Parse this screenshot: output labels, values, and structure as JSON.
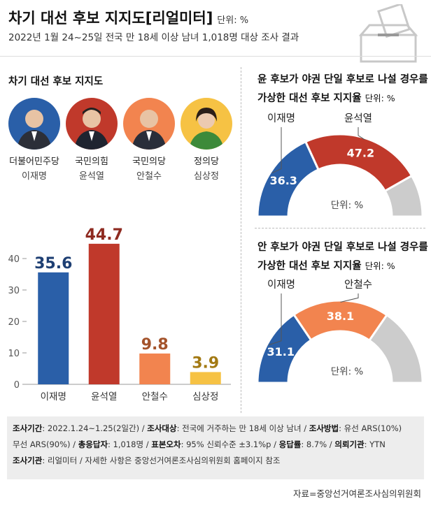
{
  "header": {
    "title": "차기 대선 후보 지지도[리얼미터]",
    "unit": "단위: %",
    "subtitle": "2022년 1월 24~25일 전국 만 18세 이상 남녀 1,018명 대상 조사 결과"
  },
  "left_section_title": "차기 대선 후보 지지도",
  "candidates": [
    {
      "party": "더불어민주당",
      "name": "이재명",
      "color": "#2a5fa8"
    },
    {
      "party": "국민의힘",
      "name": "윤석열",
      "color": "#c0392b"
    },
    {
      "party": "국민의당",
      "name": "안철수",
      "color": "#f2844f"
    },
    {
      "party": "정의당",
      "name": "심상정",
      "color": "#f6c244"
    }
  ],
  "chart_data": [
    {
      "type": "bar",
      "title": "차기 대선 후보 지지도",
      "categories": [
        "이재명",
        "윤석열",
        "안철수",
        "심상정"
      ],
      "values": [
        35.6,
        44.7,
        9.8,
        3.9
      ],
      "value_labels": [
        "35.6",
        "44.7",
        "9.8",
        "3.9"
      ],
      "colors": [
        "#2a5fa8",
        "#c0392b",
        "#f2844f",
        "#f6c244"
      ],
      "label_colors": [
        "#1e3f73",
        "#8e2a20",
        "#a4532b",
        "#a37a14"
      ],
      "ylim": [
        0,
        50
      ],
      "yticks": [
        "0",
        "10",
        "20",
        "30",
        "40"
      ],
      "ytick_values": [
        0,
        10,
        20,
        30,
        40
      ],
      "grid": false
    },
    {
      "type": "pie",
      "title_line1": "윤 후보가 야권 단일 후보로 나설 경우를",
      "title_line2": "가상한 대선 후보 지지율",
      "unit": "단위: %",
      "inner_unit": "단위: %",
      "categories": [
        "이재명",
        "윤석열"
      ],
      "values": [
        36.3,
        47.2
      ],
      "value_labels": [
        "36.3",
        "47.2"
      ],
      "colors": [
        "#2a5fa8",
        "#c0392b"
      ],
      "rest_color": "#cccccc"
    },
    {
      "type": "pie",
      "title_line1": "안 후보가 야권 단일 후보로 나설 경우를",
      "title_line2": "가상한 대선 후보 지지율",
      "unit": "단위: %",
      "inner_unit": "단위: %",
      "categories": [
        "이재명",
        "안철수"
      ],
      "values": [
        31.1,
        38.1
      ],
      "value_labels": [
        "31.1",
        "38.1"
      ],
      "colors": [
        "#2a5fa8",
        "#f2844f"
      ],
      "rest_color": "#cccccc"
    }
  ],
  "footer": {
    "line1_k1": "조사기간",
    "line1_v1": ": 2022.1.24~1.25(2일간) / ",
    "line1_k2": "조사대상",
    "line1_v2": ": 전국에 거주하는 만 18세 이상 남녀 / ",
    "line1_k3": "조사방법",
    "line1_v3": ": 유선 ARS(10%)",
    "line2_v0": "무선 ARS(90%) / ",
    "line2_k1": "총응답자",
    "line2_v1": ": 1,018명 / ",
    "line2_k2": "표본오차",
    "line2_v2": ": 95% 신뢰수준 ±3.1%p / ",
    "line2_k3": "응답률",
    "line2_v3": ": 8.7% / ",
    "line2_k4": "의뢰기관",
    "line2_v4": ": YTN",
    "line3_k1": "조사기관",
    "line3_v1": ": 리얼미터 / 자세한 사항은 중앙선거여론조사심의위원회 홈페이지 참조"
  },
  "source": "자료=중앙선거여론조사심의위원회"
}
